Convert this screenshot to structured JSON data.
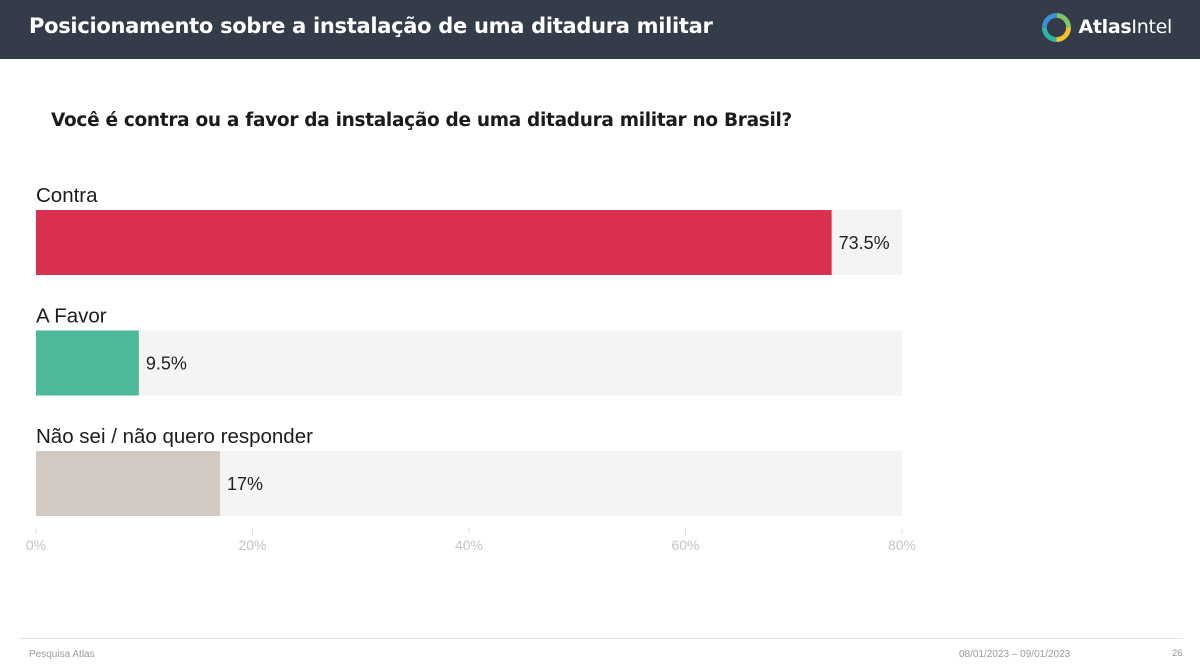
{
  "header": {
    "title": "Posicionamento sobre a instalação de uma ditadura militar",
    "brand_bold": "Atlas",
    "brand_regular": "Intel",
    "colors": {
      "background": "#343b49",
      "title": "#ffffff"
    }
  },
  "chart_data": {
    "type": "bar",
    "orientation": "horizontal",
    "title": "Você é contra ou a favor da instalação de uma ditadura militar no Brasil?",
    "xlabel": "",
    "ylabel": "",
    "xlim": [
      0,
      80
    ],
    "ticks": [
      0,
      20,
      40,
      60,
      80
    ],
    "tick_labels": [
      "0%",
      "20%",
      "40%",
      "60%",
      "80%"
    ],
    "grid": false,
    "track_color": "#f4f4f2",
    "categories": [
      "Contra",
      "A Favor",
      "Não sei / não quero responder"
    ],
    "values": [
      73.5,
      9.5,
      17
    ],
    "value_labels": [
      "73.5%",
      "9.5%",
      "17%"
    ],
    "colors": [
      "#d9304f",
      "#4db89a",
      "#d3c9c3"
    ]
  },
  "footer": {
    "source": "Pesquisa Atlas",
    "date_range": "08/01/2023 – 09/01/2023",
    "page": "26"
  }
}
